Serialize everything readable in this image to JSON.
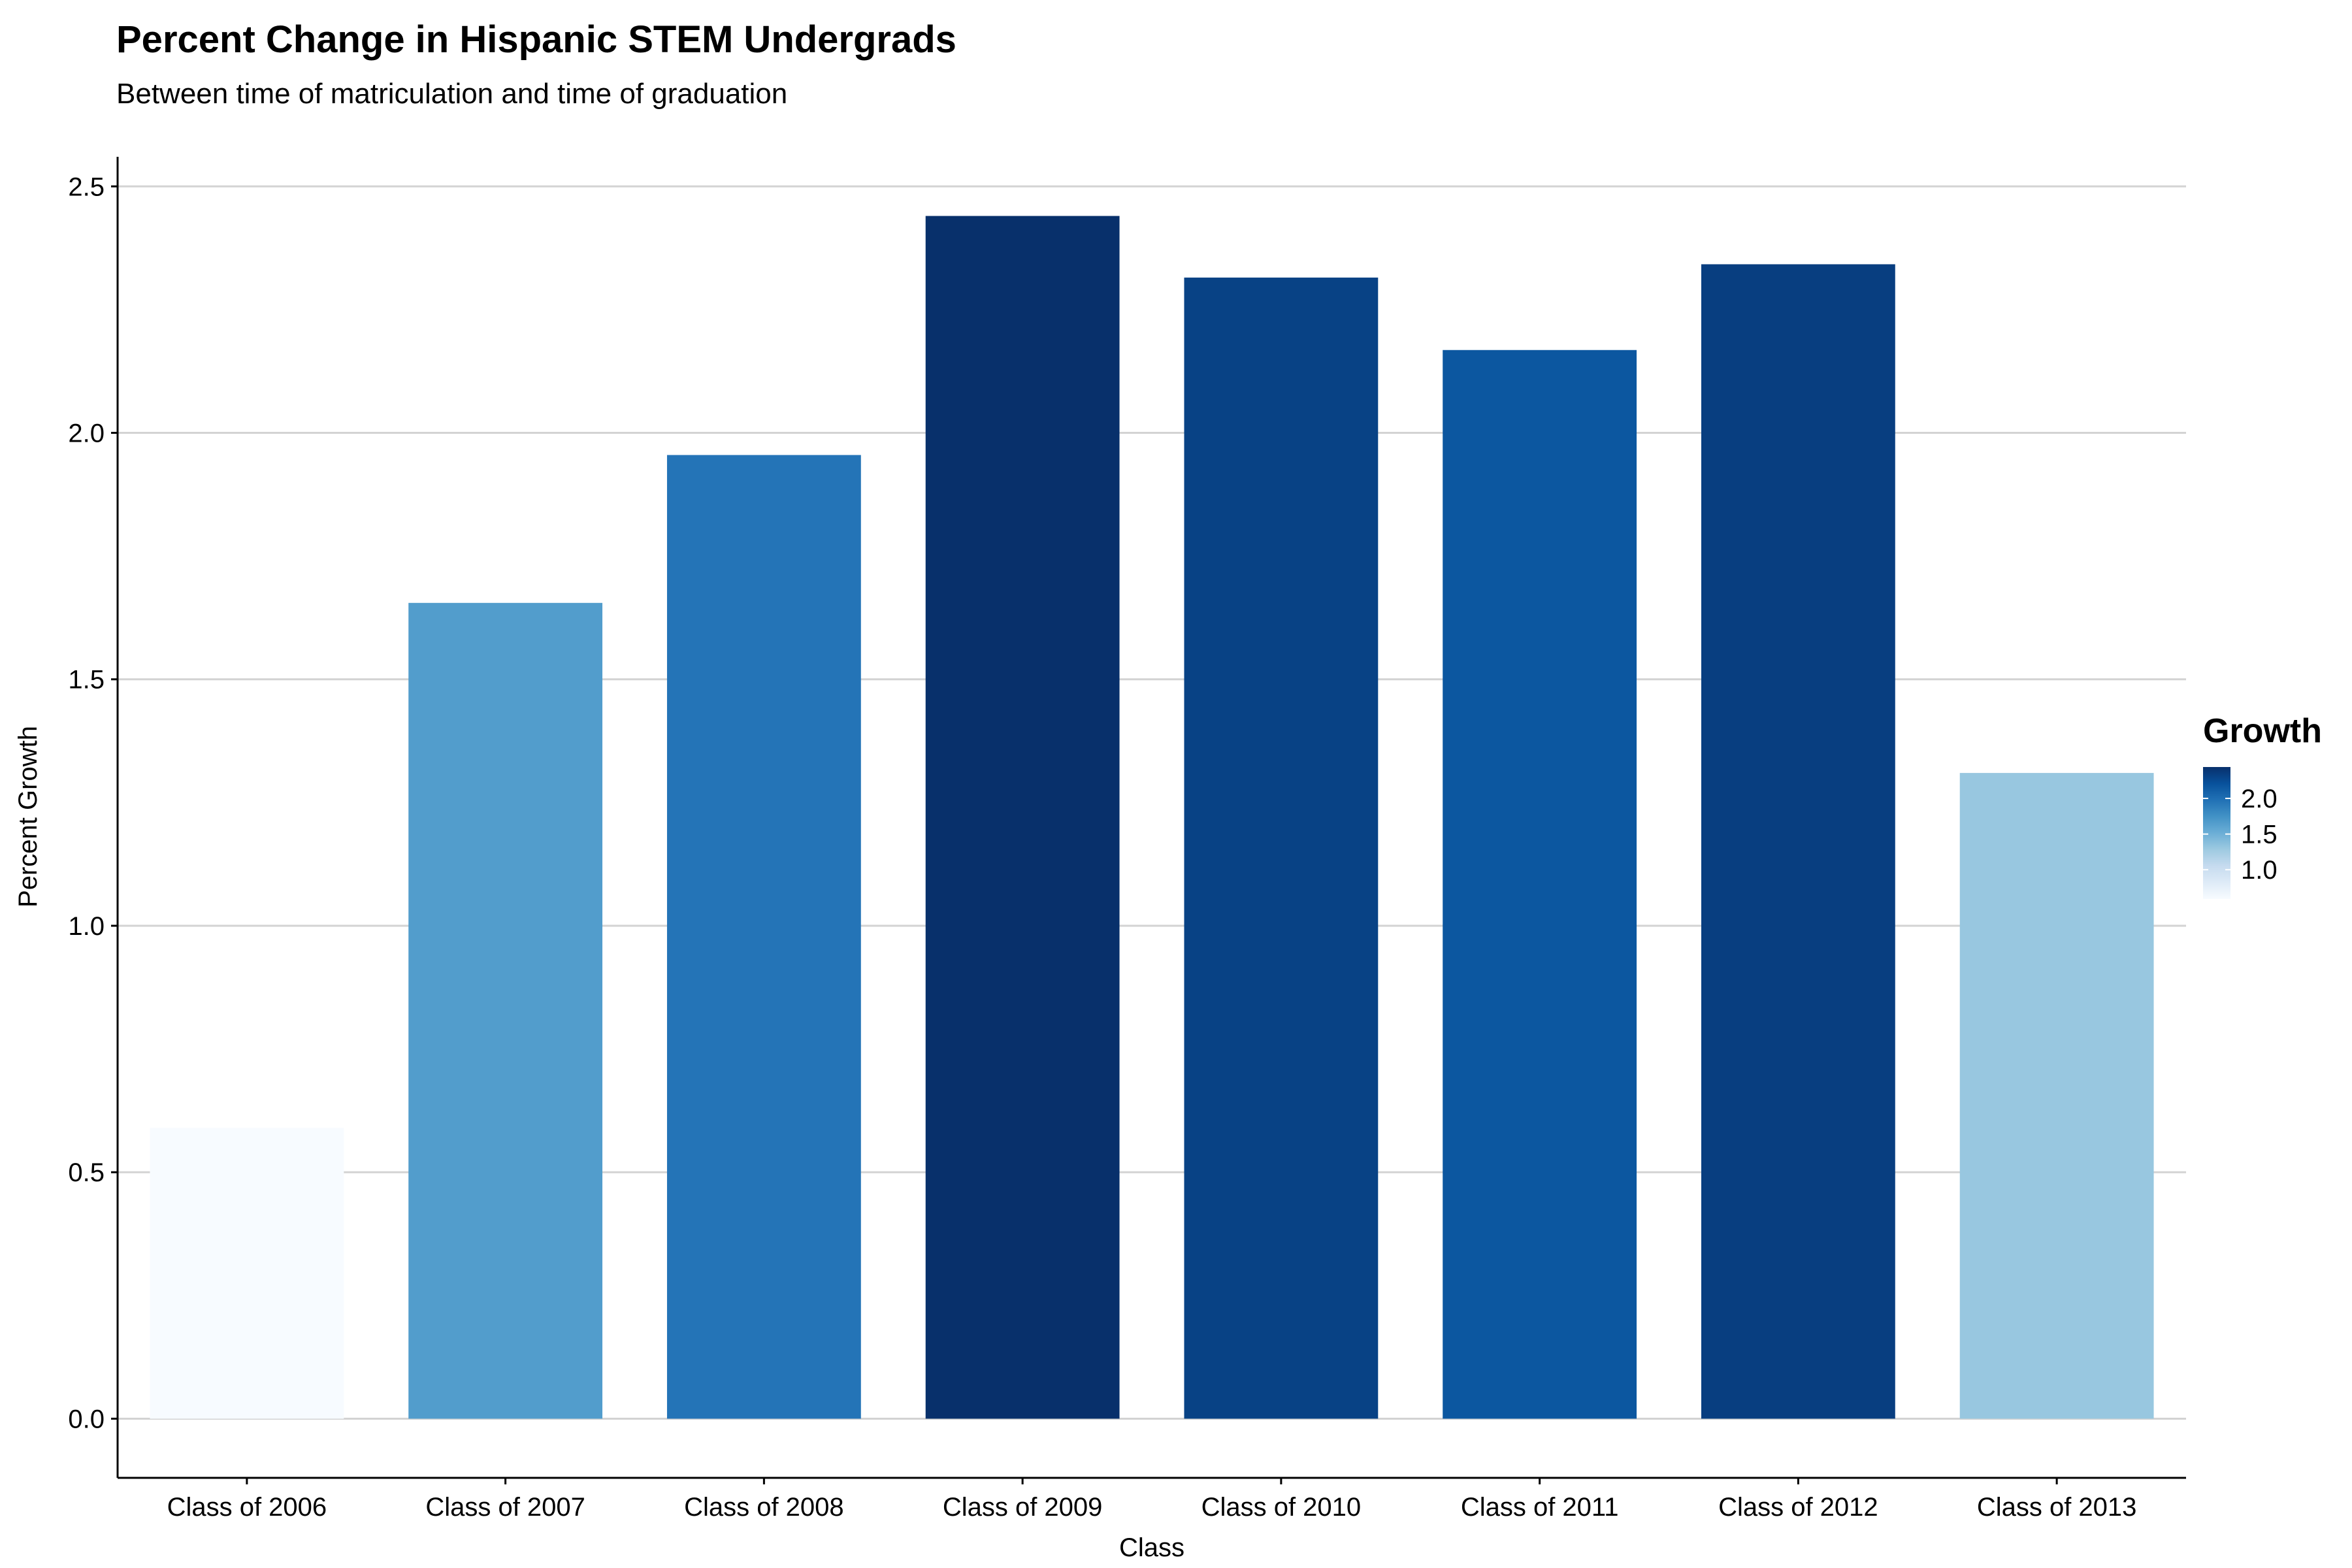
{
  "chart_data": {
    "type": "bar",
    "title": "Percent Change in Hispanic STEM Undergrads",
    "subtitle": "Between time of matriculation and time of graduation",
    "xlabel": "Class",
    "ylabel": "Percent Growth",
    "categories": [
      "Class of 2006",
      "Class of 2007",
      "Class of 2008",
      "Class of 2009",
      "Class of 2010",
      "Class of 2011",
      "Class of 2012",
      "Class of 2013"
    ],
    "values": [
      0.59,
      1.655,
      1.955,
      2.44,
      2.315,
      2.168,
      2.342,
      1.31
    ],
    "ylim": [
      -0.12,
      2.56
    ],
    "yticks": [
      0.0,
      0.5,
      1.0,
      1.5,
      2.0,
      2.5
    ],
    "ytick_labels": [
      "0.0",
      "0.5",
      "1.0",
      "1.5",
      "2.0",
      "2.5"
    ],
    "grid": "horizontal",
    "fill_scale": {
      "variable": "Growth",
      "low_color": "#f7fbff",
      "high_color": "#08306b",
      "domain": [
        0.59,
        2.44
      ],
      "stops": [
        "#f7fbff",
        "#deebf7",
        "#c6dbef",
        "#9ecae1",
        "#6baed6",
        "#4292c6",
        "#2171b5",
        "#08519c",
        "#08306b"
      ]
    },
    "legend": {
      "title": "Growth",
      "position": "right",
      "ticks": [
        2.0,
        1.5,
        1.0
      ],
      "tick_labels": [
        "2.0",
        "1.5",
        "1.0"
      ]
    }
  }
}
